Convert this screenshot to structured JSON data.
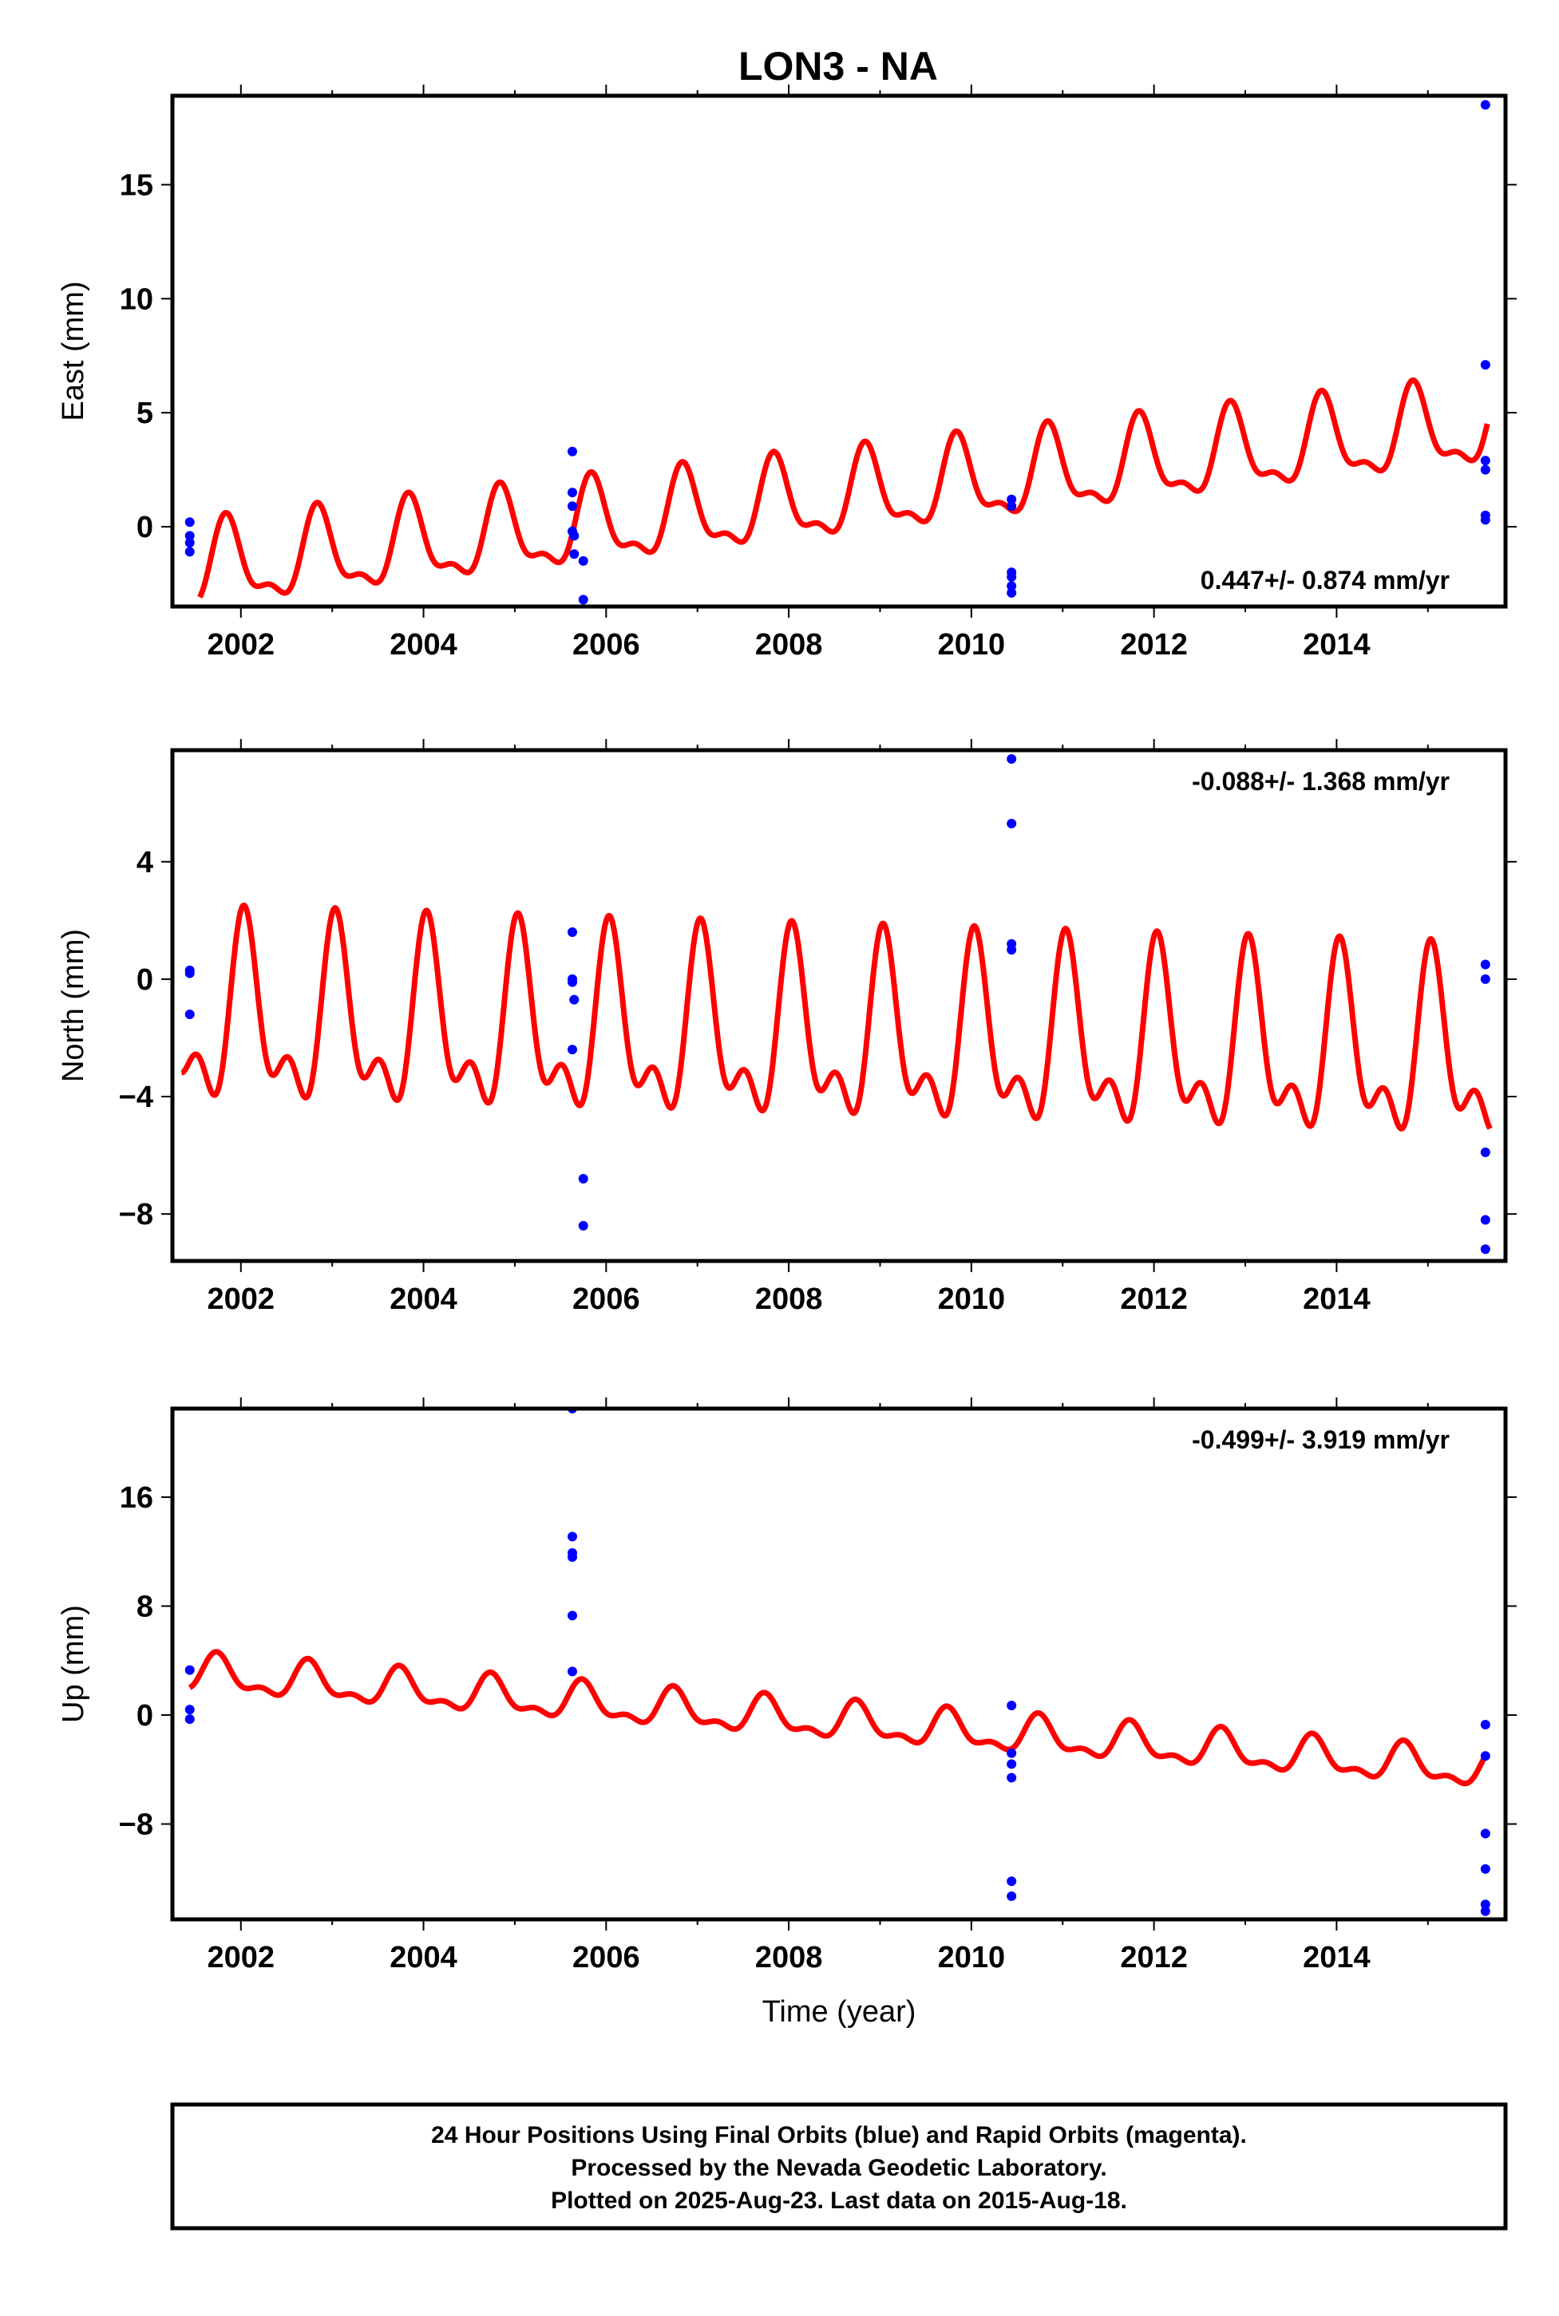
{
  "title": "LON3 - NA",
  "footer": {
    "line1": "24 Hour Positions Using Final Orbits (blue) and Rapid Orbits (magenta).",
    "line2": "Processed by the Nevada Geodetic Laboratory.",
    "line3": "Plotted on 2025-Aug-23. Last data on 2015-Aug-18."
  },
  "colors": {
    "model": "#ff0000",
    "final_orbits": "#0000ff",
    "rapid_orbits": "#ff00ff",
    "frame": "#000000"
  },
  "chart_data": [
    {
      "type": "scatter",
      "panel": "east",
      "ylabel": "East (mm)",
      "xlabel": "",
      "xlim": [
        2001.25,
        2015.85
      ],
      "ylim": [
        -3.5,
        18.9
      ],
      "xticks": [
        2002,
        2004,
        2006,
        2008,
        2010,
        2012,
        2014
      ],
      "xtick_labels": [
        "2002",
        "2004",
        "2006",
        "2008",
        "2010",
        "2012",
        "2014"
      ],
      "yticks": [
        0,
        5,
        10,
        15
      ],
      "ytick_labels": [
        "0",
        "5",
        "10",
        "15"
      ],
      "rate_text": "0.447+/- 0.874 mm/yr",
      "rate_position": "bottom-right",
      "model": {
        "start": 2001.55,
        "end": 2015.65,
        "offset": -1.9,
        "trend": 0.447,
        "annual_amp": 1.7,
        "annual_phase": 0.6,
        "semiannual_amp": 0.7,
        "semiannual_phase": 0.2
      },
      "points": [
        {
          "x": 2001.44,
          "y": 0.2
        },
        {
          "x": 2001.44,
          "y": -0.4
        },
        {
          "x": 2001.44,
          "y": -0.7
        },
        {
          "x": 2001.44,
          "y": -1.1
        },
        {
          "x": 2005.63,
          "y": 3.3
        },
        {
          "x": 2005.63,
          "y": 1.5
        },
        {
          "x": 2005.63,
          "y": 0.9
        },
        {
          "x": 2005.63,
          "y": -0.2
        },
        {
          "x": 2005.65,
          "y": -0.4
        },
        {
          "x": 2005.65,
          "y": -1.2
        },
        {
          "x": 2005.75,
          "y": -1.5
        },
        {
          "x": 2005.75,
          "y": -3.2
        },
        {
          "x": 2010.44,
          "y": 1.2
        },
        {
          "x": 2010.44,
          "y": 0.9
        },
        {
          "x": 2010.44,
          "y": -2.0
        },
        {
          "x": 2010.44,
          "y": -2.2
        },
        {
          "x": 2010.44,
          "y": -2.6
        },
        {
          "x": 2010.44,
          "y": -2.9
        },
        {
          "x": 2015.63,
          "y": 18.5
        },
        {
          "x": 2015.63,
          "y": 7.1
        },
        {
          "x": 2015.63,
          "y": 2.9
        },
        {
          "x": 2015.63,
          "y": 2.5
        },
        {
          "x": 2015.63,
          "y": 0.5
        },
        {
          "x": 2015.63,
          "y": 0.3
        }
      ]
    },
    {
      "type": "scatter",
      "panel": "north",
      "ylabel": "North (mm)",
      "xlabel": "",
      "xlim": [
        2001.25,
        2015.85
      ],
      "ylim": [
        -9.6,
        7.8
      ],
      "xticks": [
        2002,
        2004,
        2006,
        2008,
        2010,
        2012,
        2014
      ],
      "xtick_labels": [
        "2002",
        "2004",
        "2006",
        "2008",
        "2010",
        "2012",
        "2014"
      ],
      "yticks": [
        -8,
        -4,
        0,
        4
      ],
      "ytick_labels": [
        "−8",
        "−4",
        "0",
        "4"
      ],
      "rate_text": "-0.088+/- 1.368 mm/yr",
      "rate_position": "top-right",
      "model": {
        "start": 2001.35,
        "end": 2015.68,
        "offset": -1.5,
        "trend": -0.088,
        "annual_amp": 2.6,
        "annual_phase": 0.8,
        "semiannual_amp": 1.5,
        "semiannual_phase": 0.4
      },
      "points": [
        {
          "x": 2001.44,
          "y": 0.3
        },
        {
          "x": 2001.44,
          "y": 0.2
        },
        {
          "x": 2001.44,
          "y": -1.2
        },
        {
          "x": 2005.63,
          "y": 1.6
        },
        {
          "x": 2005.63,
          "y": 0.0
        },
        {
          "x": 2005.63,
          "y": -0.1
        },
        {
          "x": 2005.65,
          "y": -0.7
        },
        {
          "x": 2005.63,
          "y": -2.4
        },
        {
          "x": 2005.75,
          "y": -6.8
        },
        {
          "x": 2005.75,
          "y": -8.4
        },
        {
          "x": 2010.44,
          "y": 7.5
        },
        {
          "x": 2010.44,
          "y": 5.3
        },
        {
          "x": 2010.44,
          "y": 1.2
        },
        {
          "x": 2010.44,
          "y": 1.0
        },
        {
          "x": 2015.63,
          "y": 0.5
        },
        {
          "x": 2015.63,
          "y": 0.0
        },
        {
          "x": 2015.63,
          "y": -5.9
        },
        {
          "x": 2015.63,
          "y": -8.2
        },
        {
          "x": 2015.63,
          "y": -9.2
        }
      ]
    },
    {
      "type": "scatter",
      "panel": "up",
      "ylabel": "Up (mm)",
      "xlabel": "Time (year)",
      "xlim": [
        2001.25,
        2015.85
      ],
      "ylim": [
        -15.0,
        22.5
      ],
      "xticks": [
        2002,
        2004,
        2006,
        2008,
        2010,
        2012,
        2014
      ],
      "xtick_labels": [
        "2002",
        "2004",
        "2006",
        "2008",
        "2010",
        "2012",
        "2014"
      ],
      "yticks": [
        -8,
        0,
        8,
        16
      ],
      "ytick_labels": [
        "−8",
        "0",
        "8",
        "16"
      ],
      "rate_text": "-0.499+/- 3.919 mm/yr",
      "rate_position": "top-right",
      "model": {
        "start": 2001.44,
        "end": 2015.65,
        "offset": 3.0,
        "trend": -0.499,
        "annual_amp": 1.2,
        "annual_phase": 0.5,
        "semiannual_amp": 0.6,
        "semiannual_phase": 0.1
      },
      "points": [
        {
          "x": 2001.44,
          "y": 3.3
        },
        {
          "x": 2001.44,
          "y": 0.4
        },
        {
          "x": 2001.44,
          "y": -0.3
        },
        {
          "x": 2005.63,
          "y": 22.5
        },
        {
          "x": 2005.63,
          "y": 13.1
        },
        {
          "x": 2005.63,
          "y": 11.9
        },
        {
          "x": 2005.63,
          "y": 11.6
        },
        {
          "x": 2005.63,
          "y": 7.3
        },
        {
          "x": 2005.63,
          "y": 3.2
        },
        {
          "x": 2010.44,
          "y": 0.7
        },
        {
          "x": 2010.44,
          "y": -2.8
        },
        {
          "x": 2010.44,
          "y": -3.6
        },
        {
          "x": 2010.44,
          "y": -4.6
        },
        {
          "x": 2010.44,
          "y": -12.2
        },
        {
          "x": 2010.44,
          "y": -13.3
        },
        {
          "x": 2015.63,
          "y": -0.7
        },
        {
          "x": 2015.63,
          "y": -3.0
        },
        {
          "x": 2015.63,
          "y": -8.7
        },
        {
          "x": 2015.63,
          "y": -11.3
        },
        {
          "x": 2015.63,
          "y": -13.9
        },
        {
          "x": 2015.63,
          "y": -14.4
        }
      ]
    }
  ]
}
